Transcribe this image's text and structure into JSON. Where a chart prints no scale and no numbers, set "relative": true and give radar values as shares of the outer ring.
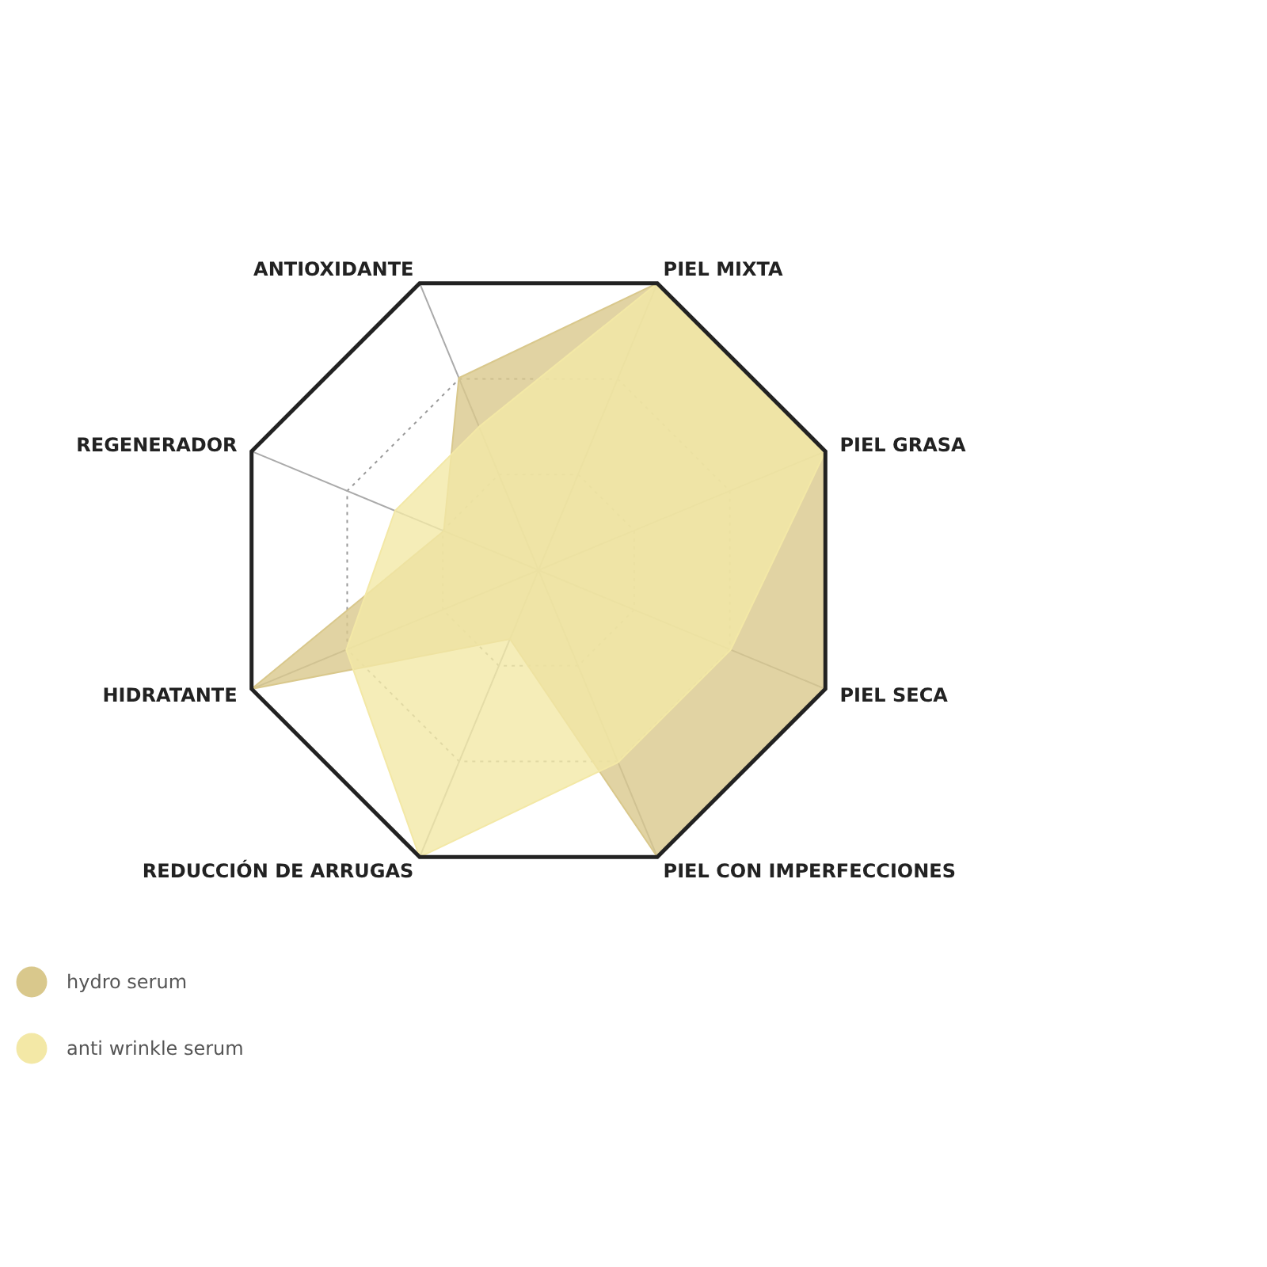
{
  "chart_data": {
    "type": "radar",
    "relative": true,
    "grid": true,
    "legend": "bottom left",
    "categories": [
      "PIEL MIXTA",
      "PIEL GRASA",
      "PIEL SECA",
      "PIEL CON IMPERFECCIONES",
      "REDUCCIÓN DE ARRUGAS",
      "HIDRATANTE",
      "REGENERADOR",
      "ANTIOXIDANTE"
    ],
    "series": [
      {
        "name": "hydro serum",
        "color": "#d9c88c",
        "values": [
          1,
          1,
          1,
          1,
          0.24,
          1,
          0.33,
          0.67
        ]
      },
      {
        "name": "anti wrinkle serum",
        "color": "#f3e8a6",
        "values": [
          1,
          1,
          0.67,
          0.67,
          1,
          0.67,
          0.5,
          0.5
        ]
      }
    ]
  }
}
